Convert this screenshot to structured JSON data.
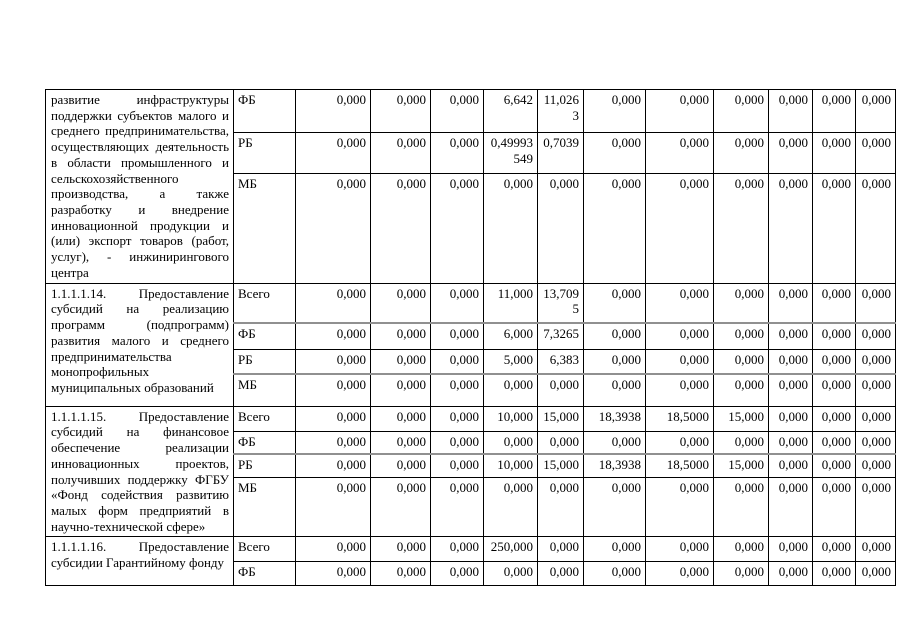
{
  "document": {
    "table": {
      "blocks": [
        {
          "description": "развитие инфраструктуры поддержки субъектов малого и среднего предпринимательства, осуществляющих деятельность в области промышленного и сельскохозяйственного производства, а также разработку и внедрение инновационной продукции и (или) экспорт товаров (работ, услуг), - инжинирингового центра",
          "rows": [
            {
              "label": "ФБ",
              "values": [
                "0,000",
                "0,000",
                "0,000",
                "6,642",
                "11,0263",
                "0,000",
                "0,000",
                "0,000",
                "0,000",
                "0,000",
                "0,000"
              ]
            },
            {
              "label": "РБ",
              "values": [
                "0,000",
                "0,000",
                "0,000",
                "0,49993549",
                "0,7039",
                "0,000",
                "0,000",
                "0,000",
                "0,000",
                "0,000",
                "0,000"
              ]
            },
            {
              "label": "МБ",
              "values": [
                "0,000",
                "0,000",
                "0,000",
                "0,000",
                "0,000",
                "0,000",
                "0,000",
                "0,000",
                "0,000",
                "0,000",
                "0,000"
              ]
            }
          ]
        },
        {
          "description": "1.1.1.1.14. Предоставление субсидий на реализацию программ (подпрограмм) развития малого и среднего предпринимательства монопрофильных муниципальных образований",
          "rows": [
            {
              "label": "Всего",
              "values": [
                "0,000",
                "0,000",
                "0,000",
                "11,000",
                "13,7095",
                "0,000",
                "0,000",
                "0,000",
                "0,000",
                "0,000",
                "0,000"
              ]
            },
            {
              "label": "ФБ",
              "values": [
                "0,000",
                "0,000",
                "0,000",
                "6,000",
                "7,3265",
                "0,000",
                "0,000",
                "0,000",
                "0,000",
                "0,000",
                "0,000"
              ]
            },
            {
              "label": "РБ",
              "values": [
                "0,000",
                "0,000",
                "0,000",
                "5,000",
                "6,383",
                "0,000",
                "0,000",
                "0,000",
                "0,000",
                "0,000",
                "0,000"
              ]
            },
            {
              "label": "МБ",
              "values": [
                "0,000",
                "0,000",
                "0,000",
                "0,000",
                "0,000",
                "0,000",
                "0,000",
                "0,000",
                "0,000",
                "0,000",
                "0,000"
              ]
            }
          ]
        },
        {
          "description": "1.1.1.1.15. Предоставление субсидий на финансовое обеспечение реализации инновационных проектов, получивших поддержку ФГБУ «Фонд содействия развитию малых форм предприятий в научно-технической сфере»",
          "rows": [
            {
              "label": "Всего",
              "values": [
                "0,000",
                "0,000",
                "0,000",
                "10,000",
                "15,000",
                "18,3938",
                "18,5000",
                "15,000",
                "0,000",
                "0,000",
                "0,000"
              ]
            },
            {
              "label": "ФБ",
              "values": [
                "0,000",
                "0,000",
                "0,000",
                "0,000",
                "0,000",
                "0,000",
                "0,000",
                "0,000",
                "0,000",
                "0,000",
                "0,000"
              ]
            },
            {
              "label": "РБ",
              "values": [
                "0,000",
                "0,000",
                "0,000",
                "10,000",
                "15,000",
                "18,3938",
                "18,5000",
                "15,000",
                "0,000",
                "0,000",
                "0,000"
              ]
            },
            {
              "label": "МБ",
              "values": [
                "0,000",
                "0,000",
                "0,000",
                "0,000",
                "0,000",
                "0,000",
                "0,000",
                "0,000",
                "0,000",
                "0,000",
                "0,000"
              ]
            }
          ]
        },
        {
          "description": "1.1.1.1.16. Предоставление субсидии Гарантийному фонду",
          "rows": [
            {
              "label": "Всего",
              "values": [
                "0,000",
                "0,000",
                "0,000",
                "250,000",
                "0,000",
                "0,000",
                "0,000",
                "0,000",
                "0,000",
                "0,000",
                "0,000"
              ]
            },
            {
              "label": "ФБ",
              "values": [
                "0,000",
                "0,000",
                "0,000",
                "0,000",
                "0,000",
                "0,000",
                "0,000",
                "0,000",
                "0,000",
                "0,000",
                "0,000"
              ]
            }
          ]
        }
      ]
    }
  }
}
